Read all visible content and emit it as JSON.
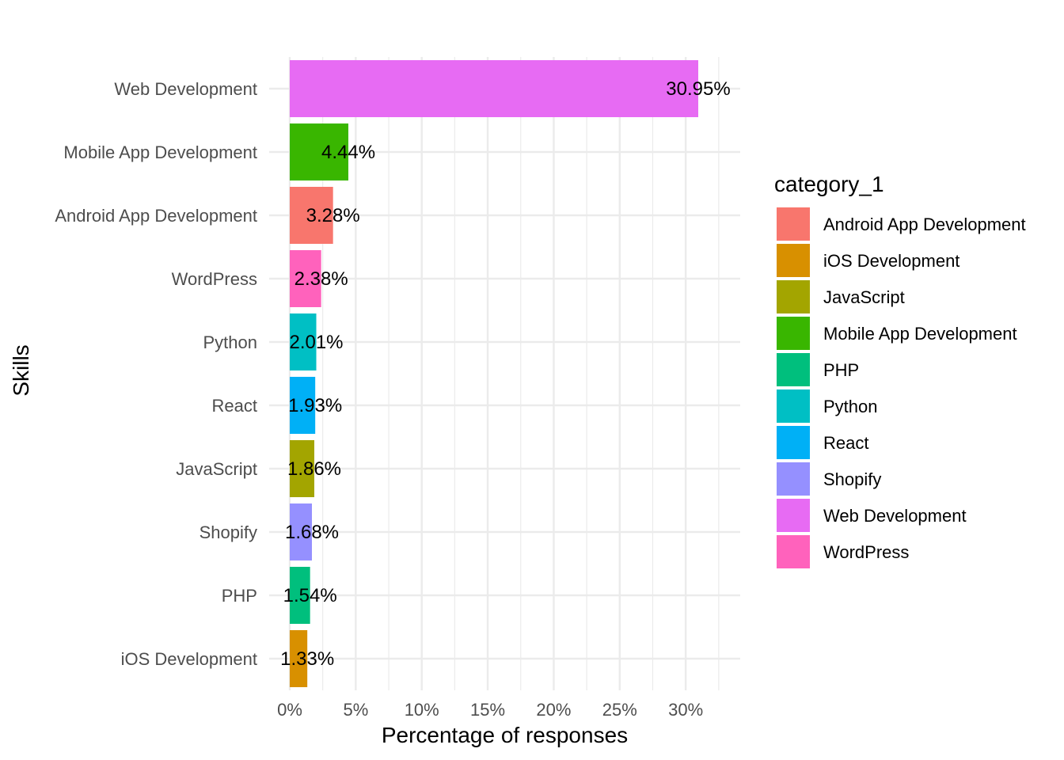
{
  "chart_data": {
    "type": "bar",
    "orientation": "horizontal",
    "categories": [
      "Web Development",
      "Mobile App Development",
      "Android App Development",
      "WordPress",
      "Python",
      "React",
      "JavaScript",
      "Shopify",
      "PHP",
      "iOS Development"
    ],
    "values": [
      30.95,
      4.44,
      3.28,
      2.38,
      2.01,
      1.93,
      1.86,
      1.68,
      1.54,
      1.33
    ],
    "data_labels": [
      "30.95%",
      "4.44%",
      "3.28%",
      "2.38%",
      "2.01%",
      "1.93%",
      "1.86%",
      "1.68%",
      "1.54%",
      "1.33%"
    ],
    "bar_colors": [
      "#E76BF3",
      "#39B600",
      "#F8766D",
      "#FF62BC",
      "#00BFC4",
      "#00B0F6",
      "#A3A500",
      "#9590FF",
      "#00BF7D",
      "#D89000"
    ],
    "xlabel": "Percentage of responses",
    "ylabel": "Skills",
    "xlim": [
      0,
      34
    ],
    "xticks": [
      0,
      5,
      10,
      15,
      20,
      25,
      30
    ],
    "xtick_labels": [
      "0%",
      "5%",
      "10%",
      "15%",
      "20%",
      "25%",
      "30%"
    ],
    "grid": true,
    "legend": {
      "title": "category_1",
      "placement": "right",
      "entries": [
        {
          "label": "Android App Development",
          "color": "#F8766D"
        },
        {
          "label": "iOS Development",
          "color": "#D89000"
        },
        {
          "label": "JavaScript",
          "color": "#A3A500"
        },
        {
          "label": "Mobile App Development",
          "color": "#39B600"
        },
        {
          "label": "PHP",
          "color": "#00BF7D"
        },
        {
          "label": "Python",
          "color": "#00BFC4"
        },
        {
          "label": "React",
          "color": "#00B0F6"
        },
        {
          "label": "Shopify",
          "color": "#9590FF"
        },
        {
          "label": "Web Development",
          "color": "#E76BF3"
        },
        {
          "label": "WordPress",
          "color": "#FF62BC"
        }
      ]
    }
  }
}
